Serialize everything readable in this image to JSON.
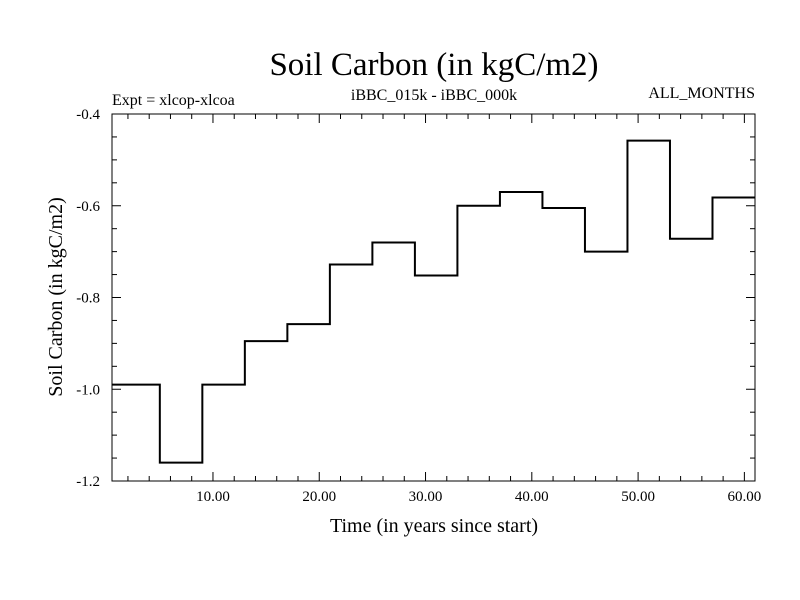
{
  "chart_data": {
    "type": "line",
    "title": "Soil Carbon (in kgC/m2)",
    "subtitle_left": "Expt = xlcop-xlcoa",
    "subtitle_center": "iBBC_015k - iBBC_000k",
    "subtitle_right": "ALL_MONTHS",
    "xlabel": "Time (in years since start)",
    "ylabel": "Soil Carbon (in kgC/m2)",
    "xlim": [
      0.5,
      61.0
    ],
    "ylim": [
      -1.2,
      -0.4
    ],
    "x_ticks": [
      10,
      20,
      30,
      40,
      50,
      60
    ],
    "x_tick_labels": [
      "10.00",
      "20.00",
      "30.00",
      "40.00",
      "50.00",
      "60.00"
    ],
    "y_ticks": [
      -1.2,
      -1.0,
      -0.8,
      -0.6,
      -0.4
    ],
    "y_tick_labels": [
      "-1.2",
      "-1.0",
      "-0.8",
      "-0.6",
      "-0.4"
    ],
    "grid": false,
    "step": true,
    "series": [
      {
        "x": [
          0.5,
          5,
          9,
          13,
          17,
          21,
          25,
          29,
          33,
          37,
          41,
          45,
          49,
          53,
          57,
          61
        ],
        "y": [
          -0.99,
          -1.16,
          -0.99,
          -0.895,
          -0.858,
          -0.728,
          -0.68,
          -0.752,
          -0.6,
          -0.57,
          -0.605,
          -0.7,
          -0.458,
          -0.672,
          -0.582,
          -0.582
        ]
      }
    ]
  }
}
